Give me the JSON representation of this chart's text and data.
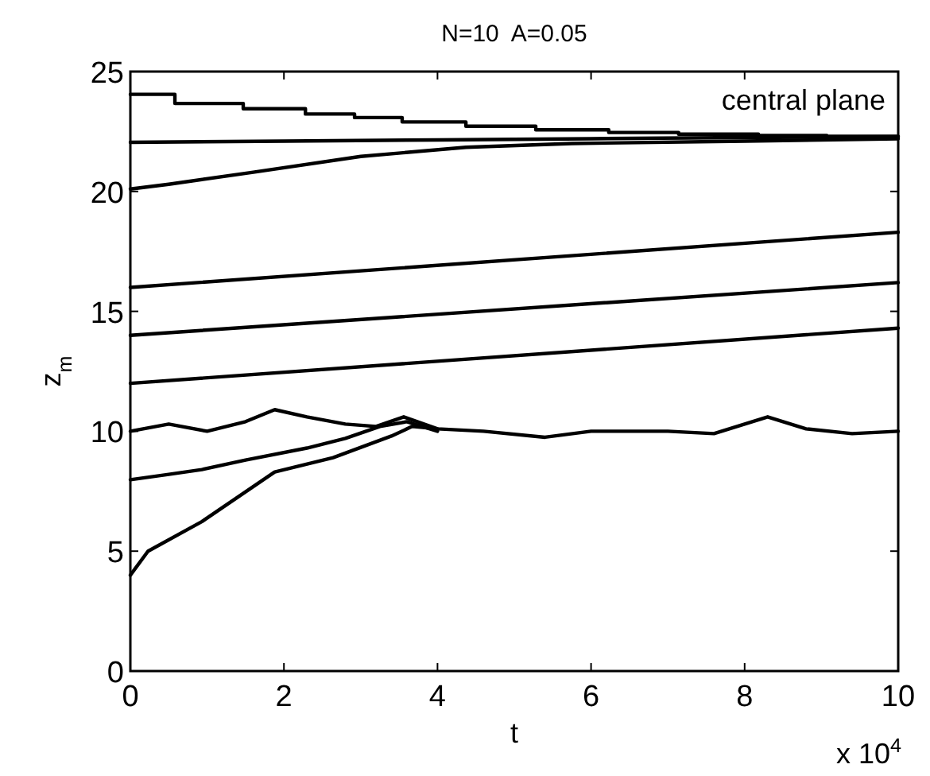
{
  "chart_data": {
    "type": "line",
    "title": "N=10  A=0.05",
    "xlabel": "t",
    "ylabel": "z$_{m}$",
    "xlim": [
      0,
      10
    ],
    "xticks": [
      0,
      2,
      4,
      6,
      8,
      10
    ],
    "ylim": [
      0,
      25
    ],
    "yticks": [
      0,
      5,
      10,
      15,
      20,
      25
    ],
    "grid": false,
    "marker": "none",
    "line_style": "solid",
    "annotations": [
      "central plane",
      "x 10$^{4}$"
    ],
    "series": [
      {
        "color": "#000000",
        "x": [
          0,
          0.58,
          0.58,
          1.47,
          1.47,
          2.28,
          2.28,
          2.92,
          2.92,
          3.54,
          3.54,
          4.37,
          4.37,
          5.28,
          5.28,
          6.23,
          6.23,
          7.14,
          7.14,
          8.18,
          8.18,
          9.07,
          9.07,
          10
        ],
        "values": [
          24.05,
          24.05,
          23.67,
          23.67,
          23.45,
          23.45,
          23.23,
          23.23,
          23.08,
          23.08,
          22.9,
          22.9,
          22.72,
          22.72,
          22.57,
          22.57,
          22.46,
          22.46,
          22.39,
          22.39,
          22.33,
          22.33,
          22.3,
          22.3
        ]
      },
      {
        "color": "#000000",
        "x": [
          0,
          2,
          4,
          6,
          8,
          10
        ],
        "values": [
          22.05,
          22.1,
          22.15,
          22.2,
          22.25,
          22.28
        ]
      },
      {
        "color": "#000000",
        "x": [
          0,
          0.5,
          1.6,
          3.0,
          4.37,
          5.75,
          8,
          10
        ],
        "values": [
          20.1,
          20.3,
          20.8,
          21.46,
          21.84,
          22.0,
          22.1,
          22.2
        ]
      },
      {
        "color": "#000000",
        "x": [
          0,
          10
        ],
        "values": [
          16.0,
          18.3
        ]
      },
      {
        "color": "#000000",
        "x": [
          0,
          10
        ],
        "values": [
          14.0,
          16.2
        ]
      },
      {
        "color": "#000000",
        "x": [
          0,
          10
        ],
        "values": [
          12.0,
          14.3
        ]
      },
      {
        "color": "#000000",
        "x": [
          0,
          0.5,
          1.0,
          1.5,
          1.88,
          2.3,
          2.8,
          3.2,
          3.56,
          4.0,
          4.6,
          5.4,
          6.0,
          7.0,
          7.6,
          8.3,
          8.8,
          9.4,
          10
        ],
        "values": [
          10.0,
          10.3,
          10.0,
          10.4,
          10.9,
          10.6,
          10.3,
          10.2,
          10.6,
          10.1,
          10.0,
          9.75,
          10.0,
          10.0,
          9.9,
          10.6,
          10.1,
          9.9,
          10.0
        ]
      },
      {
        "color": "#000000",
        "x": [
          0,
          0.5,
          0.93,
          1.5,
          2.3,
          2.8,
          3.25,
          3.6,
          4.0
        ],
        "values": [
          7.98,
          8.2,
          8.4,
          8.8,
          9.3,
          9.7,
          10.2,
          10.4,
          10.0
        ]
      },
      {
        "color": "#000000",
        "x": [
          0,
          0.23,
          0.93,
          1.88,
          2.64,
          3.4,
          3.67,
          4.0
        ],
        "values": [
          4.0,
          5.0,
          6.23,
          8.3,
          8.9,
          9.8,
          10.2,
          10.1
        ]
      }
    ]
  }
}
